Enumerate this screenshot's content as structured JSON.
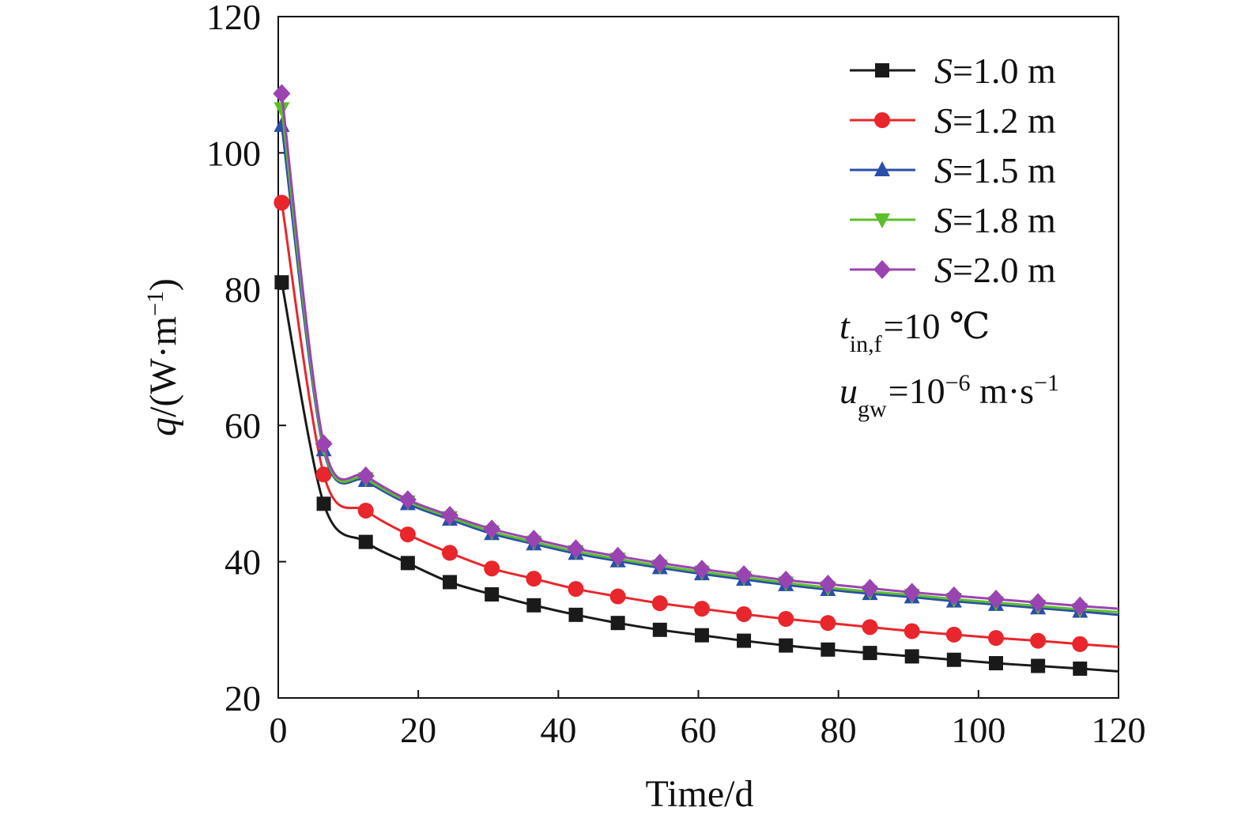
{
  "chart_data": {
    "type": "line",
    "xlabel": "Time/d",
    "ylabel": {
      "var": "q",
      "unit_open": "/(W·m",
      "unit_exp": "−1",
      "unit_close": ")"
    },
    "xlim": [
      0,
      120
    ],
    "ylim": [
      20,
      120
    ],
    "xticks": [
      0,
      20,
      40,
      60,
      80,
      100,
      120
    ],
    "yticks": [
      20,
      40,
      60,
      80,
      100,
      120
    ],
    "grid": false,
    "legend_position": "top-right",
    "x": [
      0.5,
      6.5,
      12.5,
      18.5,
      24.5,
      30.5,
      36.5,
      42.5,
      48.5,
      54.5,
      60.5,
      66.5,
      72.5,
      78.5,
      84.5,
      90.5,
      96.5,
      102.5,
      108.5,
      114.5,
      120
    ],
    "series": [
      {
        "name": "S=1.0 m",
        "var": "S",
        "label_rest": "=1.0 m",
        "color": "#1a1a1a",
        "marker": "square",
        "values": [
          81.0,
          48.5,
          42.9,
          39.8,
          37.0,
          35.2,
          33.6,
          32.2,
          31.0,
          30.0,
          29.2,
          28.4,
          27.7,
          27.1,
          26.6,
          26.1,
          25.6,
          25.1,
          24.7,
          24.3,
          23.9
        ]
      },
      {
        "name": "S=1.2 m",
        "var": "S",
        "label_rest": "=1.2 m",
        "color": "#e8262b",
        "marker": "circle",
        "values": [
          92.7,
          52.8,
          47.5,
          44.0,
          41.3,
          39.0,
          37.5,
          36.0,
          34.9,
          33.9,
          33.1,
          32.3,
          31.6,
          31.0,
          30.4,
          29.8,
          29.3,
          28.8,
          28.4,
          27.9,
          27.5
        ]
      },
      {
        "name": "S=1.5 m",
        "var": "S",
        "label_rest": "=1.5 m",
        "color": "#2b4fa8",
        "marker": "triangle-up",
        "values": [
          104.0,
          56.4,
          51.9,
          48.5,
          46.2,
          44.1,
          42.6,
          41.2,
          40.1,
          39.1,
          38.2,
          37.4,
          36.6,
          35.9,
          35.3,
          34.8,
          34.2,
          33.7,
          33.2,
          32.7,
          32.2
        ]
      },
      {
        "name": "S=1.8 m",
        "var": "S",
        "label_rest": "=1.8 m",
        "color": "#5cbf2a",
        "marker": "triangle-down",
        "values": [
          106.5,
          56.8,
          52.2,
          48.8,
          46.5,
          44.4,
          42.9,
          41.5,
          40.4,
          39.4,
          38.5,
          37.7,
          36.9,
          36.2,
          35.6,
          35.1,
          34.5,
          34.0,
          33.5,
          33.0,
          32.6
        ]
      },
      {
        "name": "S=2.0 m",
        "var": "S",
        "label_rest": "=2.0 m",
        "color": "#9a44b2",
        "marker": "diamond",
        "values": [
          108.7,
          57.3,
          52.6,
          49.1,
          46.8,
          44.8,
          43.3,
          41.9,
          40.8,
          39.8,
          38.9,
          38.1,
          37.3,
          36.7,
          36.1,
          35.5,
          35.0,
          34.5,
          34.0,
          33.5,
          33.1
        ]
      }
    ],
    "annotations": [
      {
        "var": "t",
        "sub": "in,f",
        "rest": "=10 ℃"
      },
      {
        "var": "u",
        "sub": "gw",
        "rest": "=10",
        "sup": "−6",
        "unit": " m·s",
        "unit_sup": "−1"
      }
    ]
  }
}
